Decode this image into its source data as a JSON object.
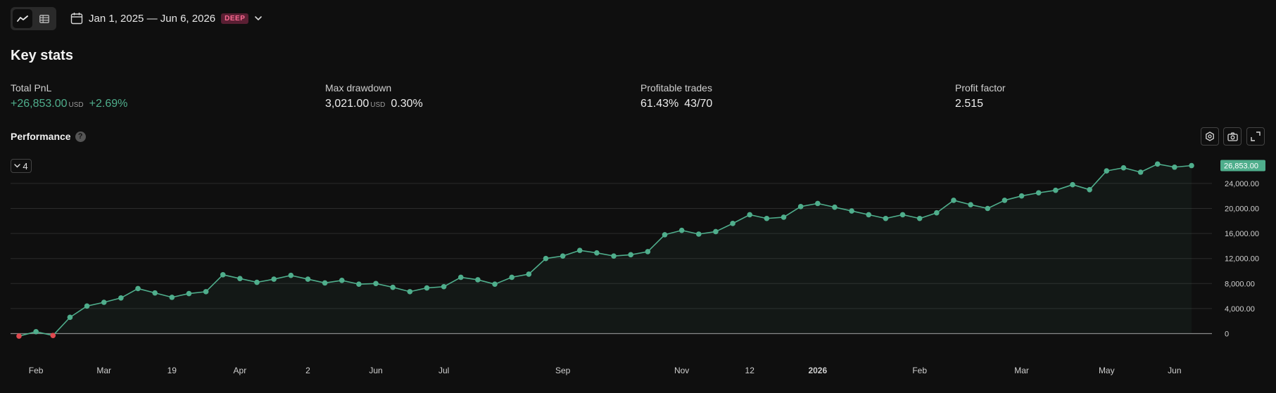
{
  "toolbar": {
    "chart_view_icon": "line-chart-icon",
    "table_view_icon": "table-icon",
    "date_range": "Jan 1, 2025 — Jun 6, 2026",
    "badge": "DEEP"
  },
  "key_stats": {
    "title": "Key stats",
    "total_pnl": {
      "label": "Total PnL",
      "value": "+26,853.00",
      "unit": "USD",
      "pct": "+2.69%"
    },
    "max_drawdown": {
      "label": "Max drawdown",
      "value": "3,021.00",
      "unit": "USD",
      "pct": "0.30%"
    },
    "profitable_trades": {
      "label": "Profitable trades",
      "pct": "61.43%",
      "ratio": "43/70"
    },
    "profit_factor": {
      "label": "Profit factor",
      "value": "2.515"
    }
  },
  "performance": {
    "title": "Performance",
    "help": "?",
    "series_count": "4",
    "last_value_label": "26,853.00"
  },
  "colors": {
    "positive": "#4fae8c",
    "negative": "#e0494f",
    "badge_bg": "#5a1f33",
    "badge_fg": "#ff6b93"
  },
  "chart_data": {
    "type": "line",
    "ylim": [
      -2000,
      27000
    ],
    "y_ticks": [
      0,
      4000,
      8000,
      12000,
      16000,
      20000,
      24000
    ],
    "y_tick_labels": [
      "0",
      "4,000.00",
      "8,000.00",
      "12,000.00",
      "16,000.00",
      "20,000.00",
      "24,000.00"
    ],
    "x_tick_labels": [
      "Feb",
      "Mar",
      "19",
      "Apr",
      "2",
      "Jun",
      "Jul",
      "Sep",
      "Nov",
      "12",
      "2026",
      "Feb",
      "Mar",
      "May",
      "Jun"
    ],
    "x_tick_index": [
      1,
      5,
      9,
      13,
      17,
      21,
      25,
      32,
      39,
      43,
      47,
      53,
      59,
      64,
      68
    ],
    "values": [
      -400,
      300,
      -300,
      2600,
      4400,
      5000,
      5700,
      7200,
      6500,
      5800,
      6400,
      6700,
      9400,
      8800,
      8200,
      8700,
      9300,
      8700,
      8100,
      8500,
      7900,
      8000,
      7400,
      6700,
      7300,
      7500,
      9000,
      8600,
      7900,
      9000,
      9500,
      12000,
      12400,
      13300,
      12900,
      12400,
      12600,
      13100,
      15800,
      16500,
      15900,
      16300,
      17600,
      19000,
      18400,
      18600,
      20300,
      20800,
      20200,
      19600,
      19000,
      18400,
      19000,
      18400,
      19300,
      21300,
      20600,
      20000,
      21300,
      22000,
      22500,
      22900,
      23800,
      23000,
      26000,
      26500,
      25800,
      27100,
      26600,
      26853
    ]
  }
}
